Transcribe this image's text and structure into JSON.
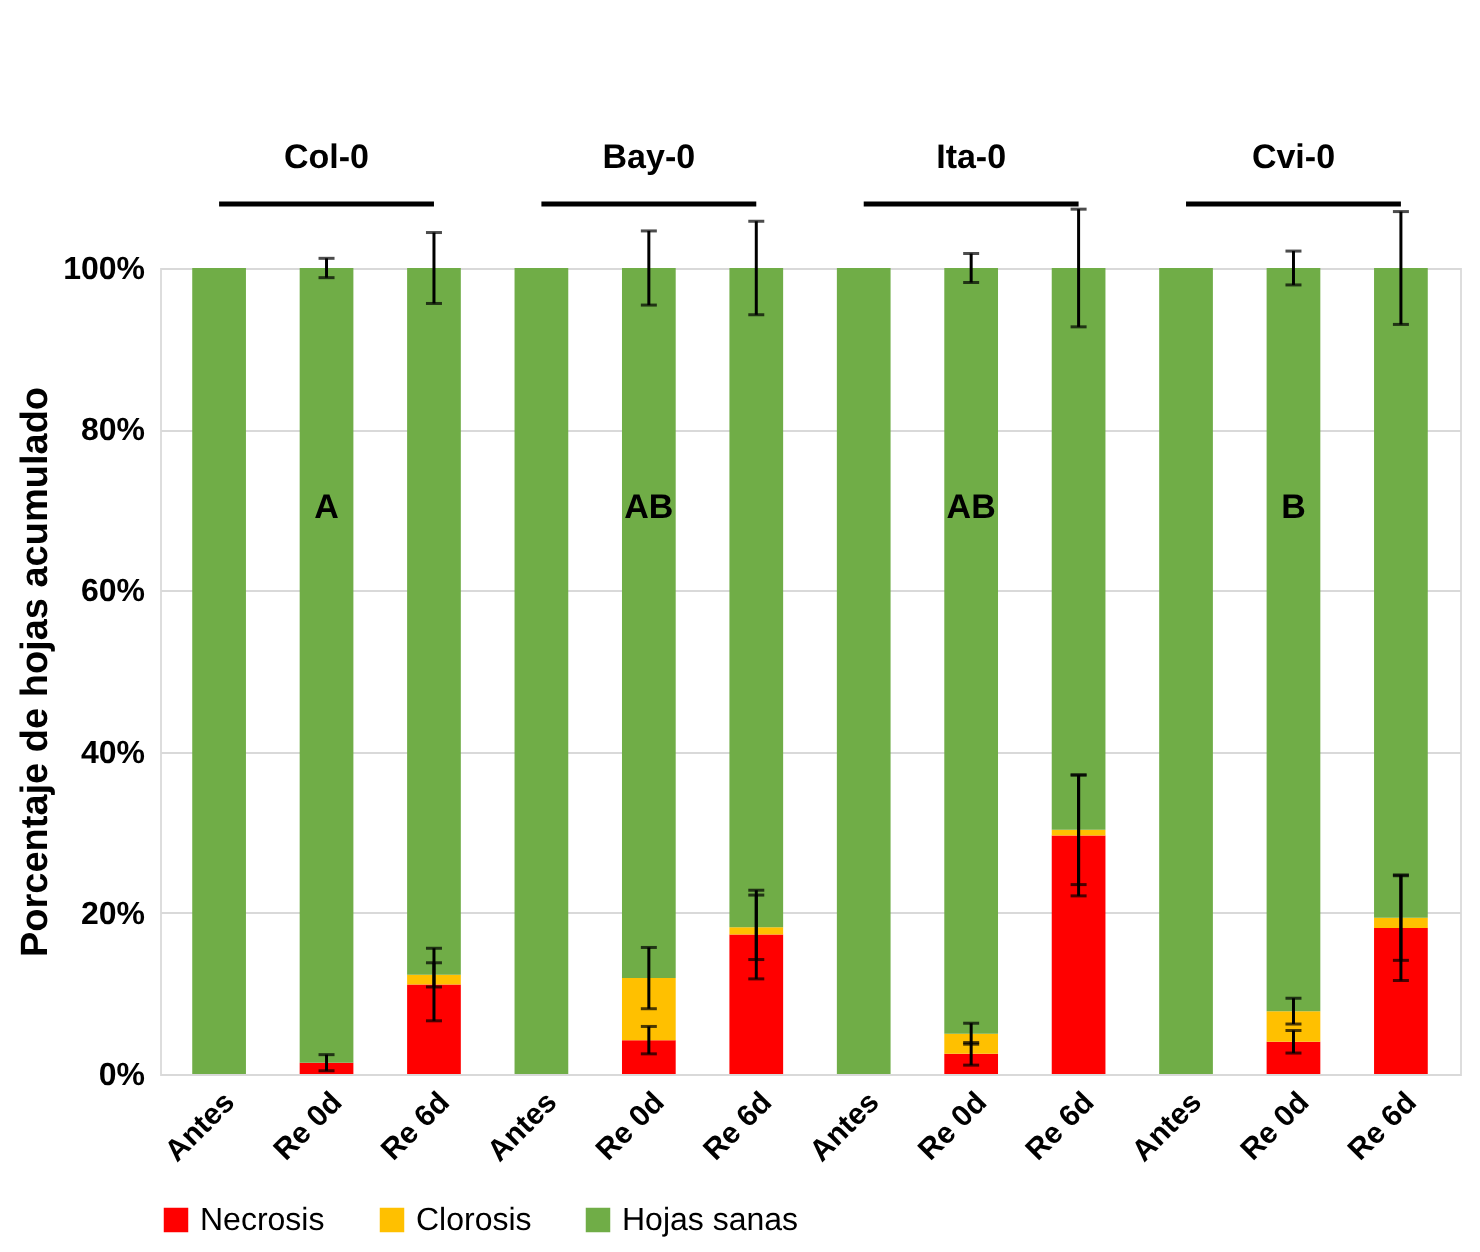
{
  "chart_data": {
    "type": "bar",
    "stacked": true,
    "ylabel": "Porcentaje de hojas acumulado",
    "categories": [
      "Antes",
      "Re 0d",
      "Re 6d",
      "Antes",
      "Re 0d",
      "Re 6d",
      "Antes",
      "Re 0d",
      "Re 6d",
      "Antes",
      "Re 0d",
      "Re 6d"
    ],
    "series": [
      {
        "name": "Necrosis",
        "color": "#ff0000",
        "values": [
          0,
          1.4,
          11.1,
          0,
          4.2,
          17.3,
          0,
          2.5,
          29.6,
          0,
          4.0,
          18.1
        ],
        "errors": [
          null,
          1.0,
          4.5,
          null,
          1.7,
          5.5,
          null,
          1.4,
          7.5,
          null,
          1.4,
          6.5
        ]
      },
      {
        "name": "Clorosis",
        "color": "#ffc000",
        "values": [
          0,
          0,
          1.2,
          0,
          7.7,
          0.9,
          0,
          2.5,
          0.7,
          0,
          3.8,
          1.3
        ],
        "errors": [
          null,
          null,
          1.5,
          null,
          3.8,
          4,
          null,
          1.3,
          6.8,
          null,
          1.6,
          5.3
        ]
      },
      {
        "name": "Hojas sanas",
        "color": "#70ad47",
        "values": [
          100,
          98.6,
          87.7,
          100,
          88.1,
          81.8,
          100,
          95,
          69.7,
          100,
          92.2,
          80.6
        ],
        "errors": [
          null,
          1.2,
          4.4,
          null,
          4.6,
          5.8,
          null,
          1.8,
          7.3,
          null,
          2.1,
          7
        ]
      }
    ],
    "ylim": [
      0,
      100
    ],
    "yticks": [
      {
        "value": 0,
        "label": "0%"
      },
      {
        "value": 20,
        "label": "20%"
      },
      {
        "value": 40,
        "label": "40%"
      },
      {
        "value": 60,
        "label": "60%"
      },
      {
        "value": 80,
        "label": "80%"
      },
      {
        "value": 100,
        "label": "100%"
      }
    ],
    "annotations": [
      "Col-0",
      "Bay-0",
      "Ita-0",
      "Cvi-0",
      "A",
      "AB",
      "AB",
      "B"
    ],
    "grid": "y",
    "legend": "bottom"
  }
}
